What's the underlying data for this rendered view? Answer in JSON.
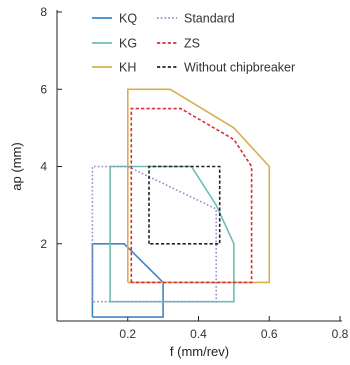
{
  "chart_data": {
    "type": "line",
    "title": "",
    "xlabel": "f (mm/rev)",
    "ylabel": "ap (mm)",
    "xlim": [
      0,
      0.8
    ],
    "ylim": [
      0,
      8
    ],
    "x_ticks": [
      {
        "value": 0.2,
        "label": "0.2"
      },
      {
        "value": 0.4,
        "label": "0.4"
      },
      {
        "value": 0.6,
        "label": "0.6"
      },
      {
        "value": 0.8,
        "label": "0.8"
      }
    ],
    "y_ticks": [
      {
        "value": 2,
        "label": "2"
      },
      {
        "value": 4,
        "label": "4"
      },
      {
        "value": 6,
        "label": "6"
      },
      {
        "value": 8,
        "label": "8"
      }
    ],
    "grid": false,
    "legend_placement": "top-left",
    "series": [
      {
        "name": "KQ",
        "color": "#3e86c6",
        "dash": "solid",
        "points": [
          [
            0.1,
            0.1
          ],
          [
            0.1,
            2.0
          ],
          [
            0.19,
            2.0
          ],
          [
            0.3,
            1.0
          ],
          [
            0.3,
            0.1
          ],
          [
            0.1,
            0.1
          ]
        ]
      },
      {
        "name": "KG",
        "color": "#6cbdb3",
        "dash": "solid",
        "points": [
          [
            0.15,
            0.5
          ],
          [
            0.15,
            4.0
          ],
          [
            0.38,
            4.0
          ],
          [
            0.45,
            3.0
          ],
          [
            0.5,
            2.0
          ],
          [
            0.5,
            0.5
          ],
          [
            0.15,
            0.5
          ]
        ]
      },
      {
        "name": "KH",
        "color": "#d4b050",
        "dash": "solid",
        "points": [
          [
            0.2,
            1.0
          ],
          [
            0.2,
            6.0
          ],
          [
            0.32,
            6.0
          ],
          [
            0.5,
            5.0
          ],
          [
            0.6,
            4.0
          ],
          [
            0.6,
            1.0
          ],
          [
            0.2,
            1.0
          ]
        ]
      },
      {
        "name": "Standard",
        "color": "#9a8ac6",
        "dash": "dotted",
        "points": [
          [
            0.1,
            0.5
          ],
          [
            0.1,
            4.0
          ],
          [
            0.2,
            4.0
          ],
          [
            0.45,
            2.9
          ],
          [
            0.45,
            0.5
          ],
          [
            0.1,
            0.5
          ]
        ]
      },
      {
        "name": "ZS",
        "color": "#dc2a3e",
        "dash": "dashed",
        "points": [
          [
            0.21,
            1.0
          ],
          [
            0.21,
            5.5
          ],
          [
            0.35,
            5.5
          ],
          [
            0.5,
            4.7
          ],
          [
            0.55,
            4.0
          ],
          [
            0.55,
            1.0
          ],
          [
            0.21,
            1.0
          ]
        ]
      },
      {
        "name": "Without chipbreaker",
        "color": "#222222",
        "dash": "dashed",
        "points": [
          [
            0.26,
            2.0
          ],
          [
            0.26,
            4.0
          ],
          [
            0.46,
            4.0
          ],
          [
            0.46,
            2.0
          ],
          [
            0.26,
            2.0
          ]
        ]
      }
    ]
  }
}
